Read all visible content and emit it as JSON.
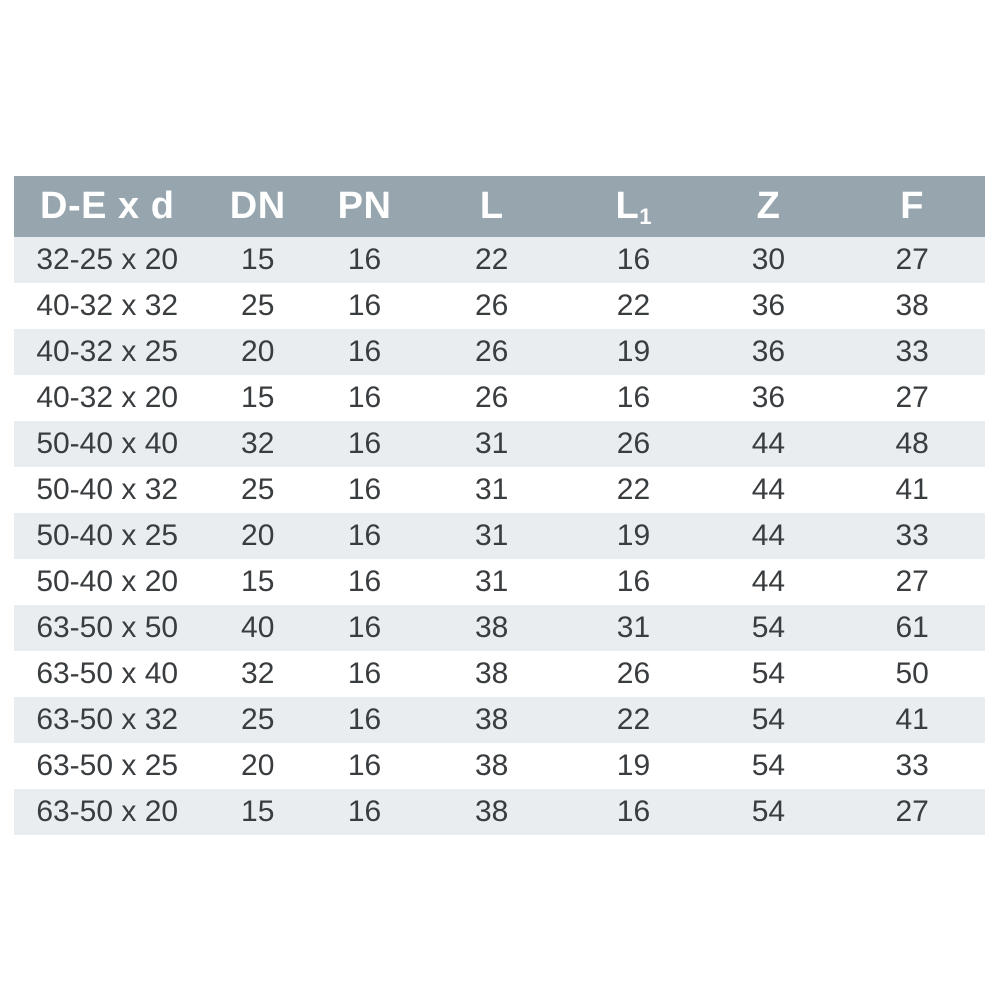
{
  "table": {
    "columns": [
      {
        "label": "D-E x d",
        "sub": ""
      },
      {
        "label": "DN",
        "sub": ""
      },
      {
        "label": "PN",
        "sub": ""
      },
      {
        "label": "L",
        "sub": ""
      },
      {
        "label": "L",
        "sub": "1"
      },
      {
        "label": "Z",
        "sub": ""
      },
      {
        "label": "F",
        "sub": ""
      }
    ],
    "rows": [
      [
        "32-25 x 20",
        "15",
        "16",
        "22",
        "16",
        "30",
        "27"
      ],
      [
        "40-32 x 32",
        "25",
        "16",
        "26",
        "22",
        "36",
        "38"
      ],
      [
        "40-32 x 25",
        "20",
        "16",
        "26",
        "19",
        "36",
        "33"
      ],
      [
        "40-32 x 20",
        "15",
        "16",
        "26",
        "16",
        "36",
        "27"
      ],
      [
        "50-40 x 40",
        "32",
        "16",
        "31",
        "26",
        "44",
        "48"
      ],
      [
        "50-40 x 32",
        "25",
        "16",
        "31",
        "22",
        "44",
        "41"
      ],
      [
        "50-40 x 25",
        "20",
        "16",
        "31",
        "19",
        "44",
        "33"
      ],
      [
        "50-40 x 20",
        "15",
        "16",
        "31",
        "16",
        "44",
        "27"
      ],
      [
        "63-50 x 50",
        "40",
        "16",
        "38",
        "31",
        "54",
        "61"
      ],
      [
        "63-50 x 40",
        "32",
        "16",
        "38",
        "26",
        "54",
        "50"
      ],
      [
        "63-50 x 32",
        "25",
        "16",
        "38",
        "22",
        "54",
        "41"
      ],
      [
        "63-50 x 25",
        "20",
        "16",
        "38",
        "19",
        "54",
        "33"
      ],
      [
        "63-50 x 20",
        "15",
        "16",
        "38",
        "16",
        "54",
        "27"
      ]
    ]
  },
  "colors": {
    "header_background": "#97a5ae",
    "header_text": "#ffffff",
    "stripe_background": "#e9edf0",
    "row_background": "#ffffff",
    "cell_text": "#3a3d3f",
    "page_background": "#ffffff"
  }
}
